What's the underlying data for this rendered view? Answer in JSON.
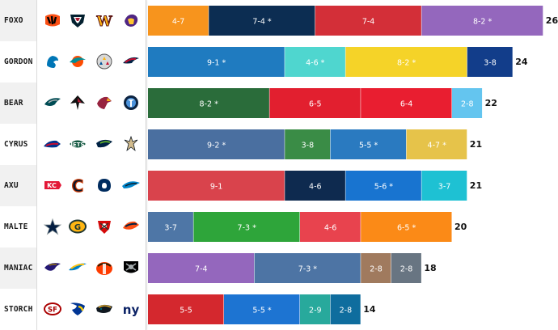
{
  "chart_data": {
    "type": "bar",
    "orientation": "horizontal",
    "stacked": true,
    "note_marker": "*",
    "rows": [
      {
        "player": "FOXO",
        "total": 26,
        "teams": [
          "bengals",
          "texans",
          "commanders",
          "vikings"
        ],
        "segments": [
          {
            "label": "4-7",
            "wins": 4,
            "color": "#f7941d"
          },
          {
            "label": "7-4 *",
            "wins": 7,
            "color": "#0c2d52"
          },
          {
            "label": "7-4",
            "wins": 7,
            "color": "#d32f38"
          },
          {
            "label": "8-2 *",
            "wins": 8,
            "color": "#9467bd"
          }
        ]
      },
      {
        "player": "GORDON",
        "total": 24,
        "teams": [
          "lions",
          "dolphins",
          "steelers",
          "patriots"
        ],
        "segments": [
          {
            "label": "9-1 *",
            "wins": 9,
            "color": "#1f7bc0"
          },
          {
            "label": "4-6 *",
            "wins": 4,
            "color": "#4fd6cf"
          },
          {
            "label": "8-2 *",
            "wins": 8,
            "color": "#f5d328"
          },
          {
            "label": "3-8",
            "wins": 3,
            "color": "#123d8a"
          }
        ]
      },
      {
        "player": "BEAR",
        "total": 22,
        "teams": [
          "eagles",
          "falcons",
          "cardinals",
          "titans"
        ],
        "segments": [
          {
            "label": "8-2 *",
            "wins": 8,
            "color": "#2a6c3a"
          },
          {
            "label": "6-5",
            "wins": 6,
            "color": "#e21f2f"
          },
          {
            "label": "6-4",
            "wins": 6,
            "color": "#e91e30"
          },
          {
            "label": "2-8",
            "wins": 2,
            "color": "#64c5ef"
          }
        ]
      },
      {
        "player": "CYRUS",
        "total": 21,
        "teams": [
          "bills",
          "jets",
          "seahawks",
          "saints"
        ],
        "segments": [
          {
            "label": "9-2 *",
            "wins": 9,
            "color": "#4a6fa0"
          },
          {
            "label": "3-8",
            "wins": 3,
            "color": "#3a8c46"
          },
          {
            "label": "5-5 *",
            "wins": 5,
            "color": "#2a7ac0"
          },
          {
            "label": "4-7 *",
            "wins": 4,
            "color": "#e6c34a"
          }
        ]
      },
      {
        "player": "AXU",
        "total": 21,
        "teams": [
          "chiefs",
          "bears",
          "colts",
          "panthers"
        ],
        "segments": [
          {
            "label": "9-1",
            "wins": 9,
            "color": "#d9434c"
          },
          {
            "label": "4-6",
            "wins": 4,
            "color": "#0e2a4f"
          },
          {
            "label": "5-6 *",
            "wins": 5,
            "color": "#1874d0"
          },
          {
            "label": "3-7",
            "wins": 3,
            "color": "#1ec1d3"
          }
        ]
      },
      {
        "player": "MALTE",
        "total": 20,
        "teams": [
          "cowboys",
          "packers",
          "buccaneers",
          "broncos"
        ],
        "segments": [
          {
            "label": "3-7",
            "wins": 3,
            "color": "#4e76a6"
          },
          {
            "label": "7-3 *",
            "wins": 7,
            "color": "#2ea53a"
          },
          {
            "label": "4-6",
            "wins": 4,
            "color": "#e8434e"
          },
          {
            "label": "6-5 *",
            "wins": 6,
            "color": "#fb8a17"
          }
        ]
      },
      {
        "player": "MANIAC",
        "total": 18,
        "teams": [
          "ravens",
          "chargers",
          "browns",
          "raiders"
        ],
        "segments": [
          {
            "label": "7-4",
            "wins": 7,
            "color": "#9467bd"
          },
          {
            "label": "7-3 *",
            "wins": 7,
            "color": "#4d74a4"
          },
          {
            "label": "2-8",
            "wins": 2,
            "color": "#a07a5e"
          },
          {
            "label": "2-8",
            "wins": 2,
            "color": "#687582"
          }
        ]
      },
      {
        "player": "STORCH",
        "total": 14,
        "teams": [
          "49ers",
          "rams",
          "jaguars",
          "giants"
        ],
        "segments": [
          {
            "label": "5-5",
            "wins": 5,
            "color": "#d4282e"
          },
          {
            "label": "5-5 *",
            "wins": 5,
            "color": "#1d74d2"
          },
          {
            "label": "2-9",
            "wins": 2,
            "color": "#28a99c"
          },
          {
            "label": "2-8",
            "wins": 2,
            "color": "#0f6d9e"
          }
        ]
      }
    ]
  }
}
